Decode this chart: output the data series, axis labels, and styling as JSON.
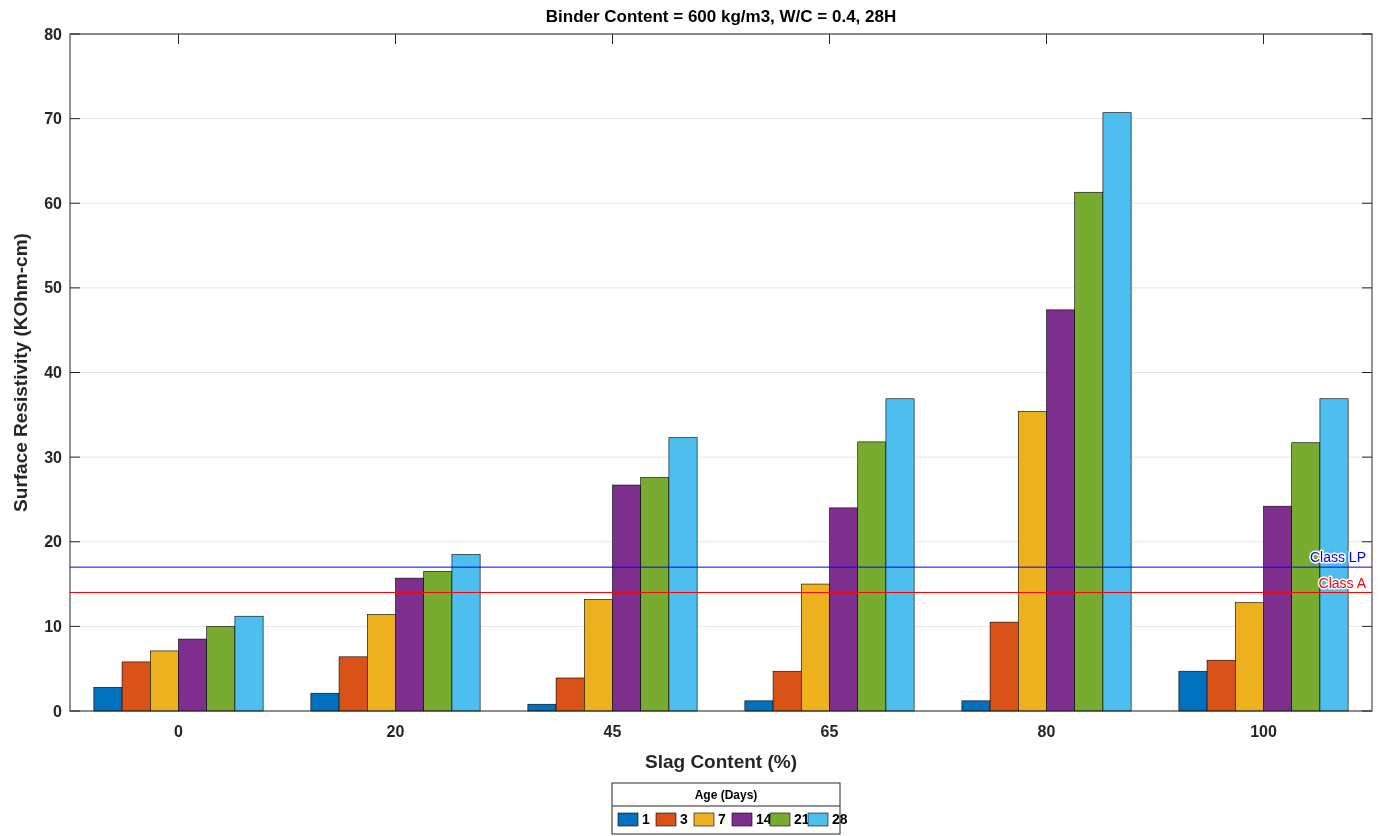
{
  "chart_data": {
    "type": "bar",
    "title": "Binder Content = 600 kg/m3, W/C = 0.4, 28H",
    "xlabel": "Slag Content (%)",
    "ylabel": "Surface Resistivity (KOhm-cm)",
    "legend_title": "Age (Days)",
    "categories": [
      "0",
      "20",
      "45",
      "65",
      "80",
      "100"
    ],
    "series": [
      {
        "name": "1",
        "color": "#0072bd",
        "values": [
          2.8,
          2.1,
          0.8,
          1.2,
          1.2,
          4.7
        ]
      },
      {
        "name": "3",
        "color": "#d95319",
        "values": [
          5.8,
          6.4,
          3.9,
          4.7,
          10.5,
          6.0
        ]
      },
      {
        "name": "7",
        "color": "#edb120",
        "values": [
          7.1,
          11.4,
          13.2,
          15.0,
          35.4,
          12.8
        ]
      },
      {
        "name": "14",
        "color": "#7e2f8e",
        "values": [
          8.5,
          15.7,
          26.7,
          24.0,
          47.4,
          24.2
        ]
      },
      {
        "name": "21",
        "color": "#77ac30",
        "values": [
          10.0,
          16.5,
          27.6,
          31.8,
          61.3,
          31.7
        ]
      },
      {
        "name": "28",
        "color": "#4dbeee",
        "values": [
          11.2,
          18.5,
          32.3,
          36.9,
          70.7,
          36.9
        ]
      }
    ],
    "ylim": [
      0,
      80
    ],
    "yticks": [
      0,
      10,
      20,
      30,
      40,
      50,
      60,
      70,
      80
    ],
    "grid": "y",
    "legend": "bottom",
    "ref_lines": [
      {
        "axis": "y",
        "value": 17,
        "label": "Class LP",
        "color": "#0000ff"
      },
      {
        "axis": "y",
        "value": 14,
        "label": "Class A",
        "color": "#ff0000"
      }
    ]
  }
}
